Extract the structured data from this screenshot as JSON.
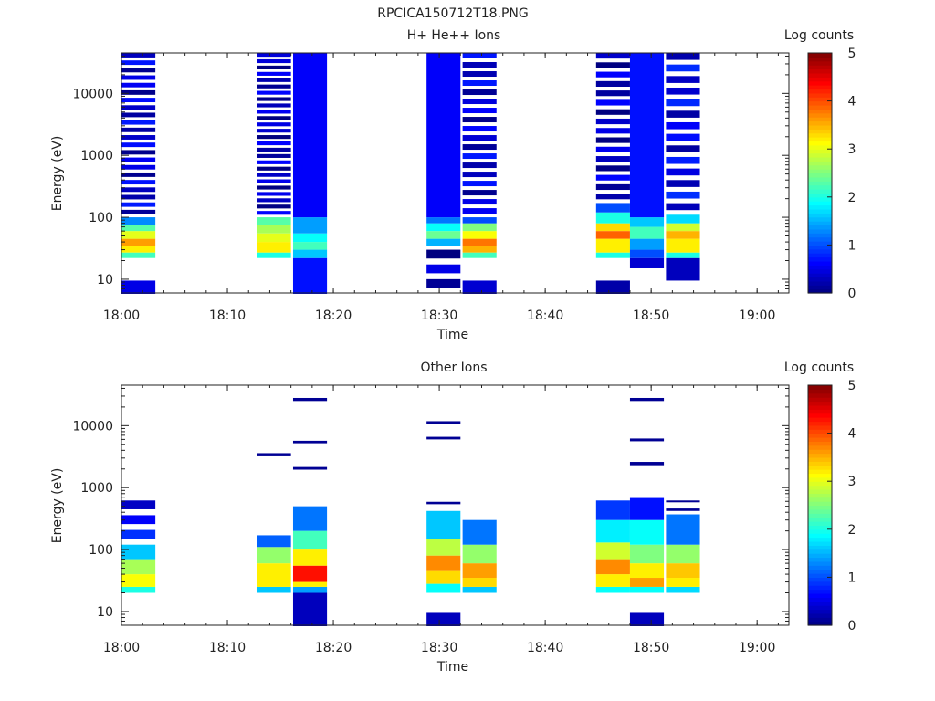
{
  "figure_title": "RPCICA150712T18.PNG",
  "chart_data": [
    {
      "type": "heatmap",
      "title": "H+ He++ Ions",
      "xlabel": "Time",
      "ylabel": "Energy (eV)",
      "x_range": [
        "18:00",
        "19:03"
      ],
      "x_ticks": [
        "18:00",
        "18:10",
        "18:20",
        "18:30",
        "18:40",
        "18:50",
        "19:00"
      ],
      "y_scale": "log",
      "y_range": [
        6,
        45000
      ],
      "y_ticks": [
        10,
        100,
        1000,
        10000
      ],
      "y_tick_labels": [
        "10",
        "100",
        "1000",
        "10000"
      ],
      "colorbar": {
        "label": "Log counts",
        "range": [
          0,
          5
        ],
        "ticks": [
          "0",
          "1",
          "2",
          "3",
          "4",
          "5"
        ]
      },
      "columns": [
        {
          "t_start": "18:00.0",
          "t_end": "18:03.2",
          "bands": [
            {
              "e_min": 22,
              "e_max": 27,
              "log_counts": 2.2
            },
            {
              "e_min": 27,
              "e_max": 35,
              "log_counts": 3.2
            },
            {
              "e_min": 35,
              "e_max": 45,
              "log_counts": 3.6
            },
            {
              "e_min": 45,
              "e_max": 60,
              "log_counts": 3.0
            },
            {
              "e_min": 60,
              "e_max": 75,
              "log_counts": 2.3
            },
            {
              "e_min": 75,
              "e_max": 100,
              "log_counts": 1.3
            },
            {
              "e_min": 100,
              "e_max": 45000,
              "log_counts": 0.4,
              "gaps": 22
            },
            {
              "e_min": 5.8,
              "e_max": 9.5,
              "log_counts": 0.5
            }
          ]
        },
        {
          "t_start": "18:12.8",
          "t_end": "18:16.0",
          "bands": [
            {
              "e_min": 22,
              "e_max": 27,
              "log_counts": 2.0
            },
            {
              "e_min": 27,
              "e_max": 40,
              "log_counts": 3.2
            },
            {
              "e_min": 40,
              "e_max": 55,
              "log_counts": 3.0
            },
            {
              "e_min": 55,
              "e_max": 75,
              "log_counts": 2.7
            },
            {
              "e_min": 75,
              "e_max": 100,
              "log_counts": 2.3
            },
            {
              "e_min": 100,
              "e_max": 45000,
              "log_counts": 0.3,
              "gaps": 26
            }
          ]
        },
        {
          "t_start": "18:16.2",
          "t_end": "18:19.4",
          "bands": [
            {
              "e_min": 5.8,
              "e_max": 22,
              "log_counts": 0.7
            },
            {
              "e_min": 22,
              "e_max": 30,
              "log_counts": 1.6
            },
            {
              "e_min": 30,
              "e_max": 40,
              "log_counts": 2.2
            },
            {
              "e_min": 40,
              "e_max": 55,
              "log_counts": 1.9
            },
            {
              "e_min": 55,
              "e_max": 100,
              "log_counts": 1.4
            },
            {
              "e_min": 100,
              "e_max": 45000,
              "log_counts": 0.6
            }
          ]
        },
        {
          "t_start": "18:28.8",
          "t_end": "18:32.0",
          "bands": [
            {
              "e_min": 5.8,
              "e_max": 30,
              "log_counts": 0.2,
              "gaps": 3
            },
            {
              "e_min": 35,
              "e_max": 45,
              "log_counts": 1.5
            },
            {
              "e_min": 45,
              "e_max": 60,
              "log_counts": 2.4
            },
            {
              "e_min": 60,
              "e_max": 80,
              "log_counts": 1.9
            },
            {
              "e_min": 80,
              "e_max": 100,
              "log_counts": 1.2
            },
            {
              "e_min": 100,
              "e_max": 45000,
              "log_counts": 0.6
            }
          ]
        },
        {
          "t_start": "18:32.2",
          "t_end": "18:35.4",
          "bands": [
            {
              "e_min": 5.8,
              "e_max": 9.5,
              "log_counts": 0.4
            },
            {
              "e_min": 22,
              "e_max": 27,
              "log_counts": 2.2
            },
            {
              "e_min": 27,
              "e_max": 35,
              "log_counts": 3.5
            },
            {
              "e_min": 35,
              "e_max": 45,
              "log_counts": 3.8
            },
            {
              "e_min": 45,
              "e_max": 60,
              "log_counts": 3.1
            },
            {
              "e_min": 60,
              "e_max": 80,
              "log_counts": 2.5
            },
            {
              "e_min": 80,
              "e_max": 100,
              "log_counts": 1.0
            },
            {
              "e_min": 100,
              "e_max": 45000,
              "log_counts": 0.4,
              "gaps": 18
            }
          ]
        },
        {
          "t_start": "18:44.8",
          "t_end": "18:48.0",
          "bands": [
            {
              "e_min": 5.8,
              "e_max": 9.5,
              "log_counts": 0.2
            },
            {
              "e_min": 22,
              "e_max": 27,
              "log_counts": 2.0
            },
            {
              "e_min": 27,
              "e_max": 45,
              "log_counts": 3.2
            },
            {
              "e_min": 45,
              "e_max": 60,
              "log_counts": 3.9
            },
            {
              "e_min": 60,
              "e_max": 80,
              "log_counts": 3.3
            },
            {
              "e_min": 80,
              "e_max": 120,
              "log_counts": 2.0
            },
            {
              "e_min": 120,
              "e_max": 170,
              "log_counts": 1.0
            },
            {
              "e_min": 170,
              "e_max": 45000,
              "log_counts": 0.3,
              "gaps": 16
            }
          ]
        },
        {
          "t_start": "18:48.0",
          "t_end": "18:51.2",
          "bands": [
            {
              "e_min": 15,
              "e_max": 22,
              "log_counts": 0.4
            },
            {
              "e_min": 22,
              "e_max": 30,
              "log_counts": 1.0
            },
            {
              "e_min": 30,
              "e_max": 45,
              "log_counts": 1.4
            },
            {
              "e_min": 45,
              "e_max": 70,
              "log_counts": 2.2
            },
            {
              "e_min": 70,
              "e_max": 100,
              "log_counts": 1.6
            },
            {
              "e_min": 100,
              "e_max": 45000,
              "log_counts": 0.7
            }
          ]
        },
        {
          "t_start": "18:51.4",
          "t_end": "18:54.6",
          "bands": [
            {
              "e_min": 9.5,
              "e_max": 22,
              "log_counts": 0.3
            },
            {
              "e_min": 22,
              "e_max": 27,
              "log_counts": 2.0
            },
            {
              "e_min": 27,
              "e_max": 45,
              "log_counts": 3.2
            },
            {
              "e_min": 45,
              "e_max": 60,
              "log_counts": 3.5
            },
            {
              "e_min": 60,
              "e_max": 80,
              "log_counts": 2.9
            },
            {
              "e_min": 80,
              "e_max": 110,
              "log_counts": 1.7
            },
            {
              "e_min": 110,
              "e_max": 45000,
              "log_counts": 0.5,
              "gaps": 14
            }
          ]
        }
      ]
    },
    {
      "type": "heatmap",
      "title": "Other Ions",
      "xlabel": "Time",
      "ylabel": "Energy (eV)",
      "x_range": [
        "18:00",
        "19:03"
      ],
      "x_ticks": [
        "18:00",
        "18:10",
        "18:20",
        "18:30",
        "18:40",
        "18:50",
        "19:00"
      ],
      "y_scale": "log",
      "y_range": [
        6,
        45000
      ],
      "y_ticks": [
        10,
        100,
        1000,
        10000
      ],
      "y_tick_labels": [
        "10",
        "100",
        "1000",
        "10000"
      ],
      "colorbar": {
        "label": "Log counts",
        "range": [
          0,
          5
        ],
        "ticks": [
          "0",
          "1",
          "2",
          "3",
          "4",
          "5"
        ]
      },
      "columns": [
        {
          "t_start": "18:00.0",
          "t_end": "18:03.2",
          "bands": [
            {
              "e_min": 20,
              "e_max": 25,
              "log_counts": 2.0
            },
            {
              "e_min": 25,
              "e_max": 40,
              "log_counts": 3.1
            },
            {
              "e_min": 40,
              "e_max": 70,
              "log_counts": 2.7
            },
            {
              "e_min": 70,
              "e_max": 120,
              "log_counts": 1.6
            },
            {
              "e_min": 120,
              "e_max": 620,
              "log_counts": 0.6,
              "gaps": 3
            }
          ]
        },
        {
          "t_start": "18:12.8",
          "t_end": "18:16.0",
          "bands": [
            {
              "e_min": 20,
              "e_max": 25,
              "log_counts": 1.6
            },
            {
              "e_min": 25,
              "e_max": 60,
              "log_counts": 3.2
            },
            {
              "e_min": 60,
              "e_max": 110,
              "log_counts": 2.6
            },
            {
              "e_min": 110,
              "e_max": 170,
              "log_counts": 1.1
            },
            {
              "e_min": 3200,
              "e_max": 3600,
              "log_counts": 0.1
            }
          ]
        },
        {
          "t_start": "18:16.2",
          "t_end": "18:19.4",
          "bands": [
            {
              "e_min": 5.8,
              "e_max": 20,
              "log_counts": 0.3
            },
            {
              "e_min": 20,
              "e_max": 25,
              "log_counts": 1.4
            },
            {
              "e_min": 25,
              "e_max": 30,
              "log_counts": 3.2
            },
            {
              "e_min": 30,
              "e_max": 55,
              "log_counts": 4.3
            },
            {
              "e_min": 55,
              "e_max": 100,
              "log_counts": 3.2
            },
            {
              "e_min": 100,
              "e_max": 200,
              "log_counts": 2.2
            },
            {
              "e_min": 200,
              "e_max": 500,
              "log_counts": 1.2
            },
            {
              "e_min": 1950,
              "e_max": 2150,
              "log_counts": 0.1
            },
            {
              "e_min": 5200,
              "e_max": 5700,
              "log_counts": 0.1
            },
            {
              "e_min": 25000,
              "e_max": 28000,
              "log_counts": 0.1
            }
          ]
        },
        {
          "t_start": "18:28.8",
          "t_end": "18:32.0",
          "bands": [
            {
              "e_min": 5.8,
              "e_max": 9.5,
              "log_counts": 0.3
            },
            {
              "e_min": 20,
              "e_max": 28,
              "log_counts": 1.9
            },
            {
              "e_min": 28,
              "e_max": 45,
              "log_counts": 3.3
            },
            {
              "e_min": 45,
              "e_max": 80,
              "log_counts": 3.7
            },
            {
              "e_min": 80,
              "e_max": 150,
              "log_counts": 2.8
            },
            {
              "e_min": 150,
              "e_max": 420,
              "log_counts": 1.6
            },
            {
              "e_min": 540,
              "e_max": 590,
              "log_counts": 0.1
            },
            {
              "e_min": 6000,
              "e_max": 6600,
              "log_counts": 0.1
            },
            {
              "e_min": 10800,
              "e_max": 11800,
              "log_counts": 0.1
            }
          ]
        },
        {
          "t_start": "18:32.2",
          "t_end": "18:35.4",
          "bands": [
            {
              "e_min": 20,
              "e_max": 25,
              "log_counts": 1.6
            },
            {
              "e_min": 25,
              "e_max": 35,
              "log_counts": 3.3
            },
            {
              "e_min": 35,
              "e_max": 60,
              "log_counts": 3.6
            },
            {
              "e_min": 60,
              "e_max": 120,
              "log_counts": 2.6
            },
            {
              "e_min": 120,
              "e_max": 300,
              "log_counts": 1.2
            }
          ]
        },
        {
          "t_start": "18:44.8",
          "t_end": "18:48.0",
          "bands": [
            {
              "e_min": 20,
              "e_max": 25,
              "log_counts": 1.9
            },
            {
              "e_min": 25,
              "e_max": 40,
              "log_counts": 3.2
            },
            {
              "e_min": 40,
              "e_max": 70,
              "log_counts": 3.7
            },
            {
              "e_min": 70,
              "e_max": 130,
              "log_counts": 2.9
            },
            {
              "e_min": 130,
              "e_max": 300,
              "log_counts": 1.8
            },
            {
              "e_min": 300,
              "e_max": 620,
              "log_counts": 0.9
            }
          ]
        },
        {
          "t_start": "18:48.0",
          "t_end": "18:51.2",
          "bands": [
            {
              "e_min": 5.8,
              "e_max": 9.5,
              "log_counts": 0.3
            },
            {
              "e_min": 20,
              "e_max": 25,
              "log_counts": 1.9
            },
            {
              "e_min": 25,
              "e_max": 35,
              "log_counts": 3.6
            },
            {
              "e_min": 35,
              "e_max": 60,
              "log_counts": 3.2
            },
            {
              "e_min": 60,
              "e_max": 120,
              "log_counts": 2.5
            },
            {
              "e_min": 120,
              "e_max": 300,
              "log_counts": 1.9
            },
            {
              "e_min": 300,
              "e_max": 680,
              "log_counts": 0.7
            },
            {
              "e_min": 2300,
              "e_max": 2600,
              "log_counts": 0.1
            },
            {
              "e_min": 5600,
              "e_max": 6200,
              "log_counts": 0.1
            },
            {
              "e_min": 25000,
              "e_max": 28000,
              "log_counts": 0.1
            }
          ]
        },
        {
          "t_start": "18:51.4",
          "t_end": "18:54.6",
          "bands": [
            {
              "e_min": 20,
              "e_max": 25,
              "log_counts": 1.7
            },
            {
              "e_min": 25,
              "e_max": 35,
              "log_counts": 3.2
            },
            {
              "e_min": 35,
              "e_max": 60,
              "log_counts": 3.4
            },
            {
              "e_min": 60,
              "e_max": 120,
              "log_counts": 2.6
            },
            {
              "e_min": 120,
              "e_max": 370,
              "log_counts": 1.2
            },
            {
              "e_min": 420,
              "e_max": 460,
              "log_counts": 0.1
            },
            {
              "e_min": 580,
              "e_max": 620,
              "log_counts": 0.1
            }
          ]
        }
      ]
    }
  ]
}
